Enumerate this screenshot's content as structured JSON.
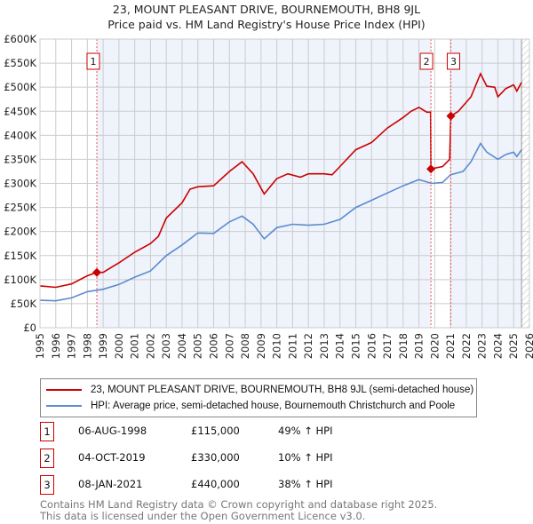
{
  "chart_data": {
    "type": "line",
    "title": "23, MOUNT PLEASANT DRIVE, BOURNEMOUTH, BH8 9JL",
    "subtitle": "Price paid vs. HM Land Registry's House Price Index (HPI)",
    "xlim": [
      1995,
      2026
    ],
    "ylim": [
      0,
      600000
    ],
    "x_ticks": [
      "1995",
      "1996",
      "1997",
      "1998",
      "1999",
      "2000",
      "2001",
      "2002",
      "2003",
      "2004",
      "2005",
      "2006",
      "2007",
      "2008",
      "2009",
      "2010",
      "2011",
      "2012",
      "2013",
      "2014",
      "2015",
      "2016",
      "2017",
      "2018",
      "2019",
      "2020",
      "2021",
      "2022",
      "2023",
      "2024",
      "2025",
      "2026"
    ],
    "y_ticks": [
      "£0",
      "£50K",
      "£100K",
      "£150K",
      "£200K",
      "£250K",
      "£300K",
      "£350K",
      "£400K",
      "£450K",
      "£500K",
      "£550K",
      "£600K"
    ],
    "series": [
      {
        "name": "23, MOUNT PLEASANT DRIVE, BOURNEMOUTH, BH8 9JL (semi-detached house)",
        "color": "#cc0000",
        "x": [
          1995,
          1996,
          1997,
          1998,
          1998.6,
          1999,
          2000,
          2001,
          2002,
          2002.5,
          2003,
          2004,
          2004.5,
          2005,
          2006,
          2007,
          2007.8,
          2008.5,
          2009.2,
          2010,
          2010.7,
          2011.5,
          2012,
          2013,
          2013.5,
          2014,
          2015,
          2016,
          2017,
          2018,
          2018.5,
          2019,
          2019.5,
          2019.74,
          2019.76,
          2020.5,
          2020.95,
          2021.02,
          2021.5,
          2022.3,
          2022.9,
          2023.3,
          2023.8,
          2024,
          2024.5,
          2025,
          2025.2,
          2025.5
        ],
        "y": [
          87,
          84,
          91,
          108,
          115,
          115,
          135,
          157,
          175,
          190,
          228,
          260,
          288,
          293,
          295,
          325,
          345,
          320,
          278,
          310,
          320,
          313,
          320,
          320,
          318,
          335,
          370,
          385,
          415,
          437,
          450,
          458,
          448,
          448,
          330,
          335,
          350,
          440,
          450,
          480,
          528,
          502,
          500,
          480,
          497,
          505,
          492,
          510
        ]
      },
      {
        "name": "HPI: Average price, semi-detached house, Bournemouth Christchurch and Poole",
        "color": "#5b8bd0",
        "x": [
          1995,
          1996,
          1997,
          1998,
          1999,
          2000,
          2001,
          2002,
          2003,
          2004,
          2005,
          2006,
          2007,
          2007.8,
          2008.5,
          2009.2,
          2010,
          2011,
          2012,
          2013,
          2014,
          2015,
          2016,
          2017,
          2018,
          2019,
          2019.8,
          2020.5,
          2021,
          2021.8,
          2022.3,
          2022.9,
          2023.3,
          2024,
          2024.5,
          2025,
          2025.2,
          2025.5
        ],
        "y": [
          57,
          56,
          62,
          75,
          80,
          90,
          105,
          118,
          150,
          172,
          197,
          196,
          220,
          232,
          215,
          185,
          208,
          215,
          213,
          215,
          225,
          250,
          265,
          280,
          295,
          308,
          300,
          302,
          318,
          325,
          345,
          383,
          365,
          350,
          360,
          365,
          356,
          370
        ]
      }
    ],
    "y_unit": "£K",
    "sales": [
      {
        "n": "1",
        "x": 1998.6,
        "y": 115
      },
      {
        "n": "2",
        "x": 2019.76,
        "y": 330
      },
      {
        "n": "3",
        "x": 2021.02,
        "y": 440
      }
    ],
    "legend_placement": "below"
  },
  "table": [
    {
      "n": "1",
      "date": "06-AUG-1998",
      "price": "£115,000",
      "hpi": "49% ↑ HPI"
    },
    {
      "n": "2",
      "date": "04-OCT-2019",
      "price": "£330,000",
      "hpi": "10% ↑ HPI"
    },
    {
      "n": "3",
      "date": "08-JAN-2021",
      "price": "£440,000",
      "hpi": "38% ↑ HPI"
    }
  ],
  "footer": {
    "line1": "Contains HM Land Registry data © Crown copyright and database right 2025.",
    "line2": "This data is licensed under the Open Government Licence v3.0."
  }
}
